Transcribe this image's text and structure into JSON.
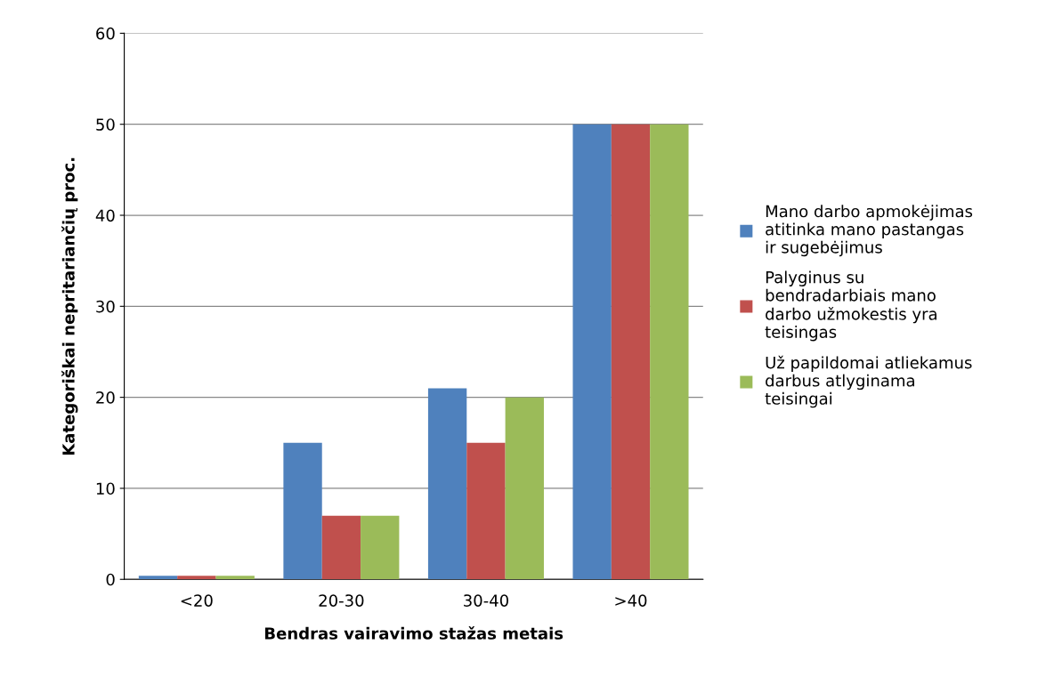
{
  "chart_data": {
    "type": "bar",
    "xlabel": "Bendras vairavimo stažas metais",
    "ylabel": "Kategoriškai nepritariančių proc.",
    "categories": [
      "<20",
      "20-30",
      "30-40",
      ">40"
    ],
    "series": [
      {
        "name": "Mano darbo apmokėjimas atitinka mano pastangas ir sugebėjimus",
        "color": "#4f81bd",
        "values": [
          0.4,
          15,
          21,
          50
        ]
      },
      {
        "name": "Palyginus su bendradarbiais mano darbo užmokestis yra teisingas",
        "color": "#c0504d",
        "values": [
          0.4,
          7,
          15,
          50
        ]
      },
      {
        "name": "Už papildomai atliekamus darbus atlyginama teisingai",
        "color": "#9bbb59",
        "values": [
          0.4,
          7,
          20,
          50
        ]
      }
    ],
    "ylim": [
      0,
      60
    ],
    "yticks": [
      0,
      10,
      20,
      30,
      40,
      50,
      60
    ],
    "grid": "y",
    "legend": "right"
  }
}
